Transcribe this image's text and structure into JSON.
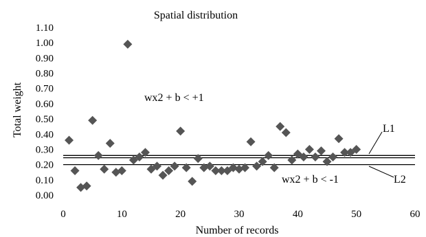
{
  "chart_data": {
    "type": "scatter",
    "title": "Spatial distribution",
    "xlabel": "Number of records",
    "ylabel": "Total weight",
    "xlim": [
      0,
      60
    ],
    "ylim": [
      0,
      1.1
    ],
    "x_ticks": [
      "0",
      "10",
      "20",
      "30",
      "40",
      "50",
      "60"
    ],
    "y_ticks": [
      "0.00",
      "0.10",
      "0.20",
      "0.30",
      "0.40",
      "0.50",
      "0.60",
      "0.70",
      "0.80",
      "0.90",
      "1.00",
      "1.10"
    ],
    "grid": false,
    "marker": "diamond",
    "marker_color": "#555555",
    "series": [
      {
        "x": [
          1,
          2,
          3,
          4,
          5,
          6,
          7,
          8,
          9,
          10,
          11,
          12,
          13,
          14,
          15,
          16,
          17,
          18,
          19,
          20,
          21,
          22,
          23,
          24,
          25,
          26,
          27,
          28,
          29,
          30,
          31,
          32,
          33,
          34,
          35,
          36,
          37,
          38,
          39,
          40,
          41,
          42,
          43,
          44,
          45,
          46,
          47,
          48,
          49,
          50
        ],
        "y": [
          0.36,
          0.16,
          0.05,
          0.06,
          0.49,
          0.26,
          0.17,
          0.34,
          0.15,
          0.16,
          0.99,
          0.23,
          0.25,
          0.28,
          0.17,
          0.19,
          0.13,
          0.16,
          0.19,
          0.42,
          0.18,
          0.09,
          0.24,
          0.18,
          0.19,
          0.16,
          0.16,
          0.16,
          0.18,
          0.17,
          0.18,
          0.35,
          0.19,
          0.22,
          0.26,
          0.18,
          0.45,
          0.41,
          0.23,
          0.27,
          0.25,
          0.3,
          0.25,
          0.29,
          0.22,
          0.25,
          0.37,
          0.28,
          0.28,
          0.3
        ]
      }
    ],
    "reference_lines": [
      {
        "y": 0.26,
        "color": "#000000"
      },
      {
        "y": 0.245,
        "color": "#000000"
      },
      {
        "y": 0.2,
        "color": "#000000"
      }
    ],
    "annotations": {
      "upper": "wx2 + b < +1",
      "lower": "wx2 + b < -1",
      "l1": "L1",
      "l2": "L2"
    }
  }
}
